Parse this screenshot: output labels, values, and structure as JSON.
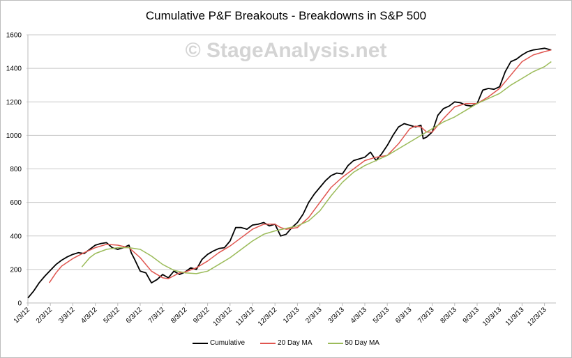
{
  "chart_data": {
    "type": "line",
    "title": "Cumulative P&F Breakouts - Breakdowns in S&P 500",
    "watermark": "© StageAnalysis.net",
    "xlabel": "",
    "ylabel": "",
    "ylim": [
      0,
      1600
    ],
    "yticks": [
      0,
      200,
      400,
      600,
      800,
      1000,
      1200,
      1400,
      1600
    ],
    "x_unit": "months since 1/3/12",
    "xlim": [
      0,
      23.6
    ],
    "xtick_labels": [
      "1/3/12",
      "2/3/12",
      "3/3/12",
      "4/3/12",
      "5/3/12",
      "6/3/12",
      "7/3/12",
      "8/3/12",
      "9/3/12",
      "10/3/12",
      "11/3/12",
      "12/3/12",
      "1/3/13",
      "2/3/13",
      "3/3/13",
      "4/3/13",
      "5/3/13",
      "6/3/13",
      "7/3/13",
      "8/3/13",
      "9/3/13",
      "10/3/13",
      "11/3/13",
      "12/3/13"
    ],
    "grid": true,
    "legend_position": "bottom",
    "series": [
      {
        "name": "Cumulative",
        "color": "#000000",
        "x": [
          0,
          0.25,
          0.5,
          0.75,
          1,
          1.25,
          1.5,
          1.75,
          2,
          2.25,
          2.5,
          2.75,
          3,
          3.25,
          3.5,
          3.75,
          4,
          4.25,
          4.5,
          4.6,
          4.75,
          5,
          5.25,
          5.5,
          5.75,
          6,
          6.25,
          6.5,
          6.75,
          7,
          7.25,
          7.5,
          7.75,
          8,
          8.25,
          8.5,
          8.75,
          9,
          9.25,
          9.5,
          9.75,
          10,
          10.25,
          10.5,
          10.75,
          11,
          11.25,
          11.5,
          11.75,
          12,
          12.25,
          12.5,
          12.75,
          13,
          13.25,
          13.5,
          13.75,
          14,
          14.25,
          14.5,
          14.75,
          15,
          15.25,
          15.5,
          15.75,
          16,
          16.25,
          16.5,
          16.75,
          17,
          17.25,
          17.5,
          17.6,
          17.75,
          18,
          18.25,
          18.5,
          18.75,
          19,
          19.25,
          19.5,
          19.75,
          20,
          20.25,
          20.5,
          20.75,
          21,
          21.25,
          21.5,
          21.75,
          22,
          22.25,
          22.5,
          22.75,
          23,
          23.3
        ],
        "values": [
          30,
          70,
          120,
          160,
          195,
          230,
          255,
          275,
          290,
          300,
          295,
          320,
          345,
          355,
          360,
          330,
          320,
          330,
          345,
          300,
          260,
          190,
          180,
          120,
          140,
          170,
          150,
          190,
          170,
          185,
          210,
          200,
          260,
          290,
          310,
          325,
          330,
          370,
          450,
          450,
          440,
          465,
          470,
          480,
          460,
          470,
          400,
          410,
          450,
          480,
          530,
          600,
          650,
          690,
          730,
          760,
          775,
          770,
          820,
          850,
          860,
          870,
          900,
          850,
          890,
          940,
          1000,
          1050,
          1070,
          1060,
          1050,
          1060,
          980,
          990,
          1020,
          1120,
          1160,
          1175,
          1200,
          1195,
          1180,
          1175,
          1190,
          1270,
          1280,
          1275,
          1290,
          1380,
          1440,
          1455,
          1480,
          1500,
          1510,
          1515,
          1520,
          1510
        ]
      },
      {
        "name": "20 Day MA",
        "color": "#e0554f",
        "x": [
          0.95,
          1.25,
          1.5,
          2,
          2.5,
          3,
          3.5,
          4,
          4.5,
          5,
          5.5,
          6,
          6.25,
          6.75,
          7,
          7.5,
          8,
          8.5,
          9,
          9.5,
          10,
          10.5,
          11,
          11.25,
          11.5,
          12,
          12.5,
          13,
          13.5,
          14,
          14.5,
          15,
          15.5,
          16,
          16.5,
          17,
          17.25,
          17.5,
          17.75,
          18,
          18.5,
          19,
          19.5,
          20,
          20.5,
          21,
          21.5,
          22,
          22.5,
          23,
          23.3
        ],
        "values": [
          120,
          180,
          220,
          265,
          300,
          330,
          350,
          345,
          330,
          270,
          190,
          150,
          145,
          180,
          185,
          210,
          250,
          300,
          340,
          390,
          440,
          470,
          470,
          450,
          440,
          450,
          510,
          600,
          690,
          750,
          800,
          850,
          870,
          880,
          950,
          1040,
          1055,
          1050,
          1020,
          1020,
          1100,
          1170,
          1190,
          1190,
          1230,
          1280,
          1360,
          1440,
          1480,
          1500,
          1510
        ]
      },
      {
        "name": "50 Day MA",
        "color": "#9bbb59",
        "x": [
          2.4,
          2.75,
          3,
          3.5,
          4,
          4.5,
          5,
          5.5,
          6,
          6.5,
          7,
          7.5,
          8,
          8.5,
          9,
          9.5,
          10,
          10.5,
          11,
          11.5,
          12,
          12.5,
          13,
          13.5,
          14,
          14.5,
          15,
          15.5,
          16,
          16.5,
          17,
          17.5,
          18,
          18.5,
          19,
          19.5,
          20,
          20.5,
          21,
          21.5,
          22,
          22.5,
          23,
          23.3
        ],
        "values": [
          215,
          270,
          295,
          320,
          330,
          330,
          320,
          280,
          230,
          195,
          180,
          175,
          190,
          230,
          270,
          320,
          370,
          410,
          430,
          445,
          460,
          490,
          550,
          640,
          720,
          780,
          820,
          850,
          880,
          920,
          960,
          1000,
          1040,
          1080,
          1110,
          1150,
          1190,
          1220,
          1250,
          1300,
          1340,
          1380,
          1410,
          1440
        ]
      }
    ]
  }
}
